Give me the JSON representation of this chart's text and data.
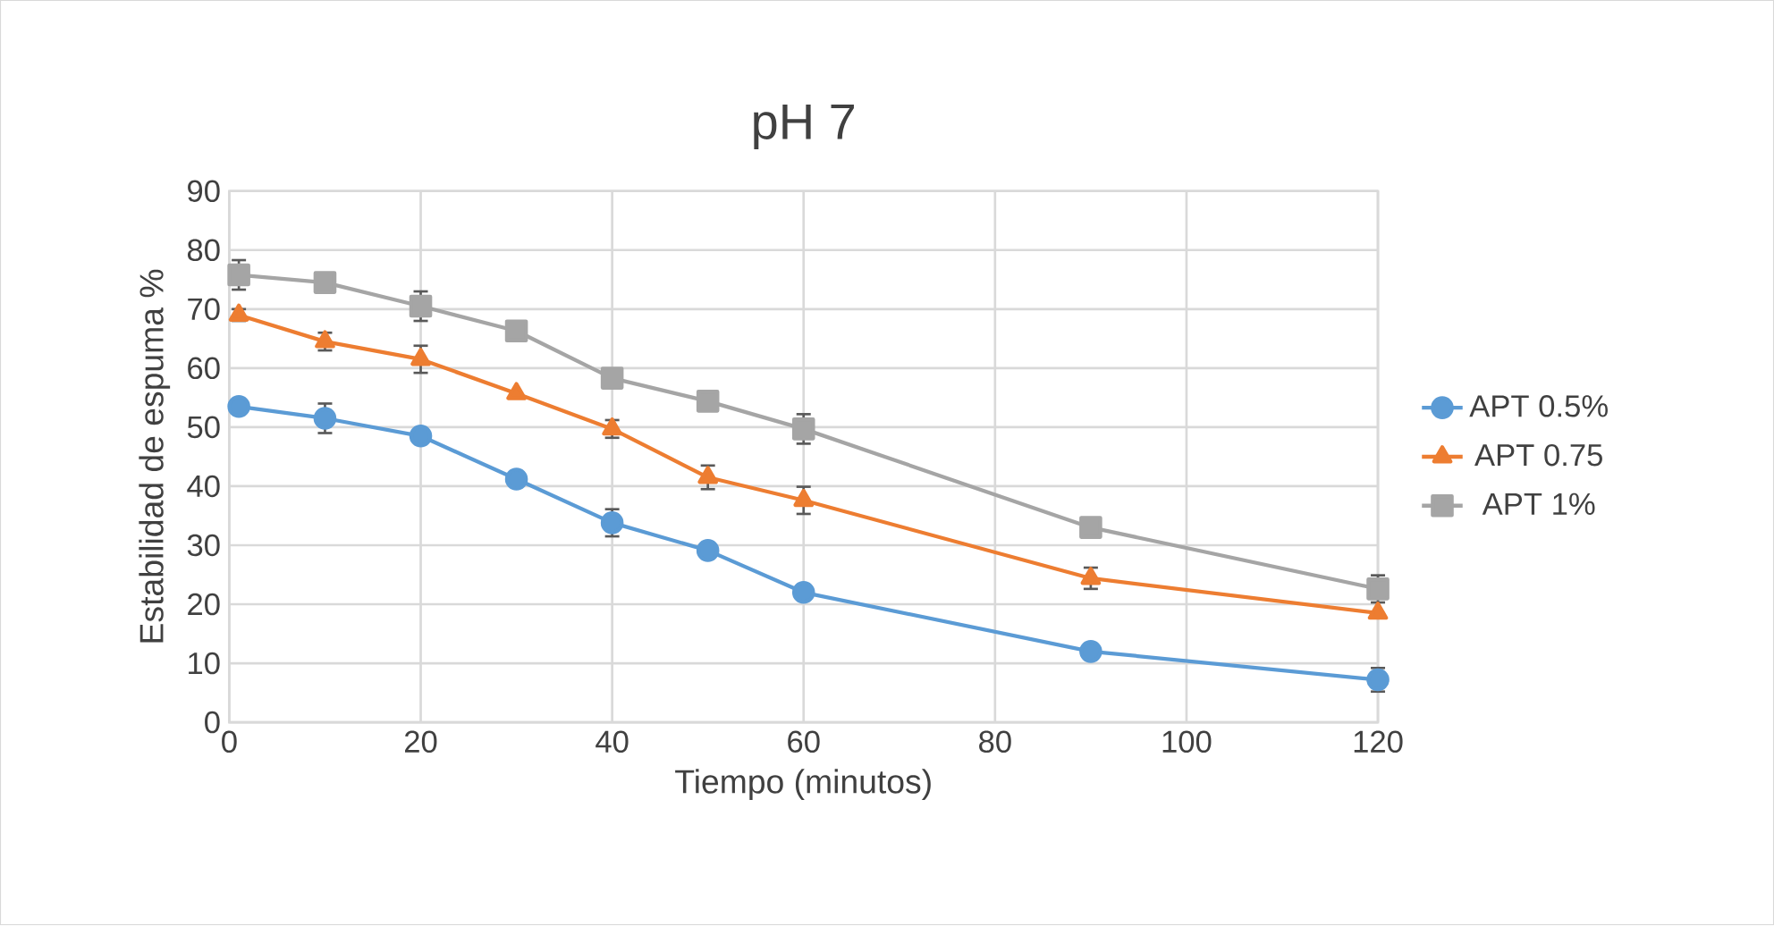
{
  "chart_data": {
    "type": "line",
    "title": "pH 7",
    "xlabel": "Tiempo (minutos)",
    "ylabel": "Estabilidad de espuma %",
    "xlim": [
      0,
      120
    ],
    "xticks": [
      0,
      20,
      40,
      60,
      80,
      100,
      120
    ],
    "ylim": [
      0,
      90
    ],
    "yticks": [
      0,
      10,
      20,
      30,
      40,
      50,
      60,
      70,
      80,
      90
    ],
    "grid": true,
    "legend": "right",
    "x": [
      1,
      10,
      20,
      30,
      40,
      50,
      60,
      90,
      120
    ],
    "series": [
      {
        "name": "APT 0.5%",
        "color": "#5b9bd5",
        "marker": "circle",
        "values": [
          53.5,
          51.5,
          48.5,
          41.2,
          33.8,
          29.1,
          22,
          12,
          7.2
        ],
        "errors": [
          null,
          2.5,
          null,
          null,
          2.3,
          null,
          null,
          null,
          2
        ]
      },
      {
        "name": "APT 0.75",
        "color": "#ed7d31",
        "marker": "triangle",
        "values": [
          69,
          64.5,
          61.5,
          55.7,
          49.7,
          41.5,
          37.6,
          24.4,
          18.5
        ],
        "errors": [
          1,
          1.5,
          2.3,
          null,
          1.5,
          2,
          2.3,
          1.8,
          null
        ]
      },
      {
        "name": "APT 1%",
        "color": "#a5a5a5",
        "marker": "square",
        "values": [
          75.8,
          74.5,
          70.5,
          66.3,
          58.3,
          54.4,
          49.7,
          33,
          22.6
        ],
        "errors": [
          2.5,
          1,
          2.5,
          1,
          1,
          1,
          2.5,
          1,
          2.3
        ]
      }
    ]
  }
}
